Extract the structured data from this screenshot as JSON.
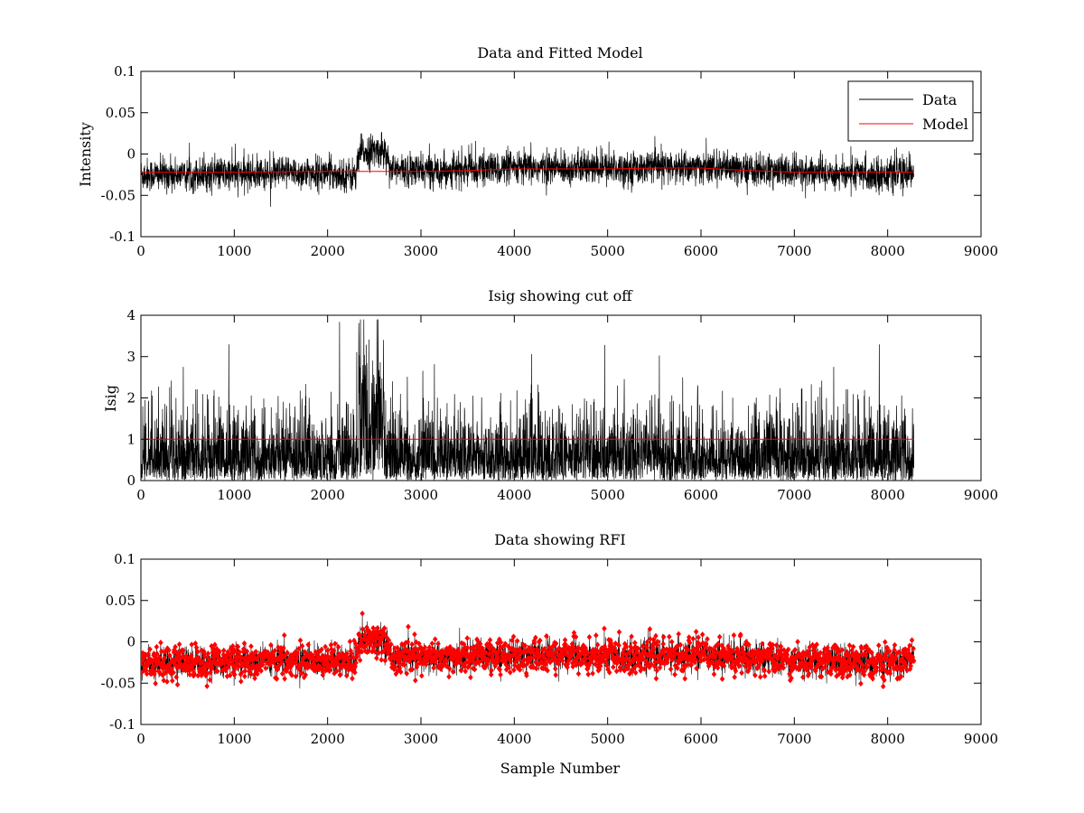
{
  "figure": {
    "background": "#ffffff"
  },
  "chart_data": [
    {
      "type": "line",
      "title": "Data and Fitted Model",
      "xlabel": "",
      "ylabel": "Intensity",
      "xlim": [
        0,
        9000
      ],
      "ylim": [
        -0.1,
        0.1
      ],
      "x_ticks": [
        0,
        1000,
        2000,
        3000,
        4000,
        5000,
        6000,
        7000,
        8000,
        9000
      ],
      "y_ticks": [
        -0.1,
        -0.05,
        0,
        0.05,
        0.1
      ],
      "x_tick_labels": [
        "0",
        "1000",
        "2000",
        "3000",
        "4000",
        "5000",
        "6000",
        "7000",
        "8000",
        "9000"
      ],
      "y_tick_labels": [
        "-0.1",
        "-0.05",
        "0",
        "0.05",
        "0.1"
      ],
      "grid": false,
      "legend": {
        "position": "top-right",
        "entries": [
          "Data",
          "Model"
        ]
      },
      "series": [
        {
          "name": "Data",
          "color": "#000000",
          "style": "noisy-line",
          "x_range": [
            0,
            8280
          ],
          "baseline": {
            "x": [
              0,
              1000,
              2000,
              2300,
              2350,
              2600,
              2700,
              3000,
              4000,
              5000,
              6000,
              7000,
              8000,
              8280
            ],
            "y": [
              -0.025,
              -0.024,
              -0.023,
              -0.026,
              0.002,
              0.005,
              -0.02,
              -0.02,
              -0.017,
              -0.017,
              -0.016,
              -0.022,
              -0.025,
              -0.022
            ]
          },
          "noise_sd": 0.01
        },
        {
          "name": "Model",
          "color": "#ff0000",
          "style": "line",
          "x": [
            0,
            1000,
            2000,
            2500,
            3000,
            3500,
            4000,
            4500,
            5000,
            5500,
            6000,
            6500,
            7000,
            7500,
            8000,
            8280
          ],
          "y": [
            -0.022,
            -0.022,
            -0.021,
            -0.021,
            -0.021,
            -0.02,
            -0.018,
            -0.018,
            -0.018,
            -0.017,
            -0.017,
            -0.02,
            -0.022,
            -0.022,
            -0.022,
            -0.022
          ]
        }
      ]
    },
    {
      "type": "line",
      "title": "Isig showing cut off",
      "xlabel": "",
      "ylabel": "Isig",
      "xlim": [
        0,
        9000
      ],
      "ylim": [
        0,
        4
      ],
      "x_ticks": [
        0,
        1000,
        2000,
        3000,
        4000,
        5000,
        6000,
        7000,
        8000,
        9000
      ],
      "y_ticks": [
        0,
        1,
        2,
        3,
        4
      ],
      "x_tick_labels": [
        "0",
        "1000",
        "2000",
        "3000",
        "4000",
        "5000",
        "6000",
        "7000",
        "8000",
        "9000"
      ],
      "y_tick_labels": [
        "0",
        "1",
        "2",
        "3",
        "4"
      ],
      "grid": false,
      "series": [
        {
          "color": "#000000",
          "style": "abs-noise",
          "x_range": [
            0,
            8280
          ],
          "scale": 0.8,
          "burst": {
            "x": [
              2330,
              2620
            ],
            "scale": 1.9
          }
        },
        {
          "color": "#ff0000",
          "style": "line",
          "x": [
            0,
            8280
          ],
          "y": [
            1,
            1
          ]
        }
      ]
    },
    {
      "type": "scatter",
      "title": "Data showing RFI",
      "xlabel": "Sample Number",
      "ylabel": "",
      "xlim": [
        0,
        9000
      ],
      "ylim": [
        -0.1,
        0.1
      ],
      "x_ticks": [
        0,
        1000,
        2000,
        3000,
        4000,
        5000,
        6000,
        7000,
        8000,
        9000
      ],
      "y_ticks": [
        -0.1,
        -0.05,
        0,
        0.05,
        0.1
      ],
      "x_tick_labels": [
        "0",
        "1000",
        "2000",
        "3000",
        "4000",
        "5000",
        "6000",
        "7000",
        "8000",
        "9000"
      ],
      "y_tick_labels": [
        "-0.1",
        "-0.05",
        "0",
        "0.05",
        "0.1"
      ],
      "grid": false,
      "series": [
        {
          "color": "#ff0000",
          "style": "noisy-markers",
          "marker": "diamond",
          "line_color": "#000000",
          "x_range": [
            0,
            8280
          ],
          "baseline": {
            "x": [
              0,
              1000,
              2000,
              2300,
              2350,
              2600,
              2700,
              3000,
              4000,
              5000,
              6000,
              7000,
              8000,
              8280
            ],
            "y": [
              -0.025,
              -0.024,
              -0.023,
              -0.026,
              0.002,
              0.005,
              -0.02,
              -0.02,
              -0.017,
              -0.017,
              -0.016,
              -0.022,
              -0.025,
              -0.022
            ]
          },
          "noise_sd": 0.01
        }
      ]
    }
  ]
}
